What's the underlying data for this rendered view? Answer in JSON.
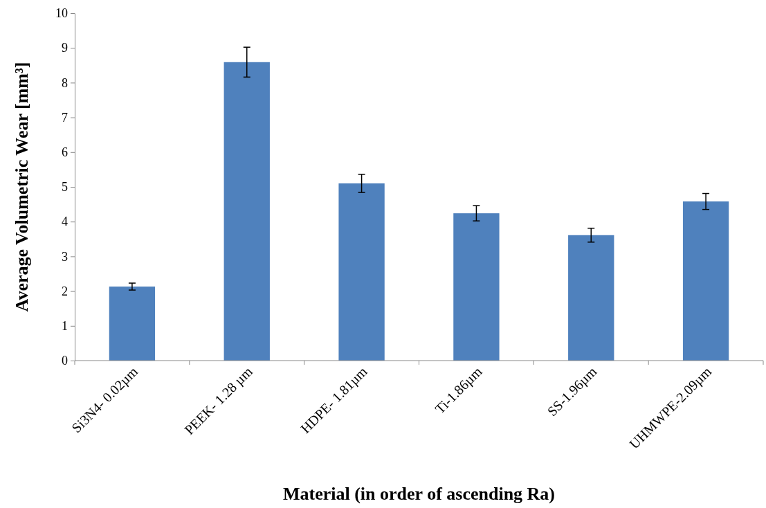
{
  "chart_data": {
    "type": "bar",
    "xlabel": "Material (in order of ascending Ra)",
    "ylabel": "Average Volumetric Wear [mm³]",
    "categories": [
      "Si3N4- 0.02µm",
      "PEEK- 1.28 µm",
      "HDPE- 1.81µm",
      "Ti-1.86µm",
      "SS-1.96µm",
      "UHMWPE-2.09µm"
    ],
    "values": [
      2.13,
      8.59,
      5.1,
      4.24,
      3.61,
      4.58
    ],
    "errors": [
      0.1,
      0.43,
      0.26,
      0.22,
      0.2,
      0.23
    ],
    "color": "#4f81bd",
    "ylim": [
      0,
      10
    ],
    "yticks": [
      0,
      1,
      2,
      3,
      4,
      5,
      6,
      7,
      8,
      9,
      10
    ],
    "grid": false
  }
}
